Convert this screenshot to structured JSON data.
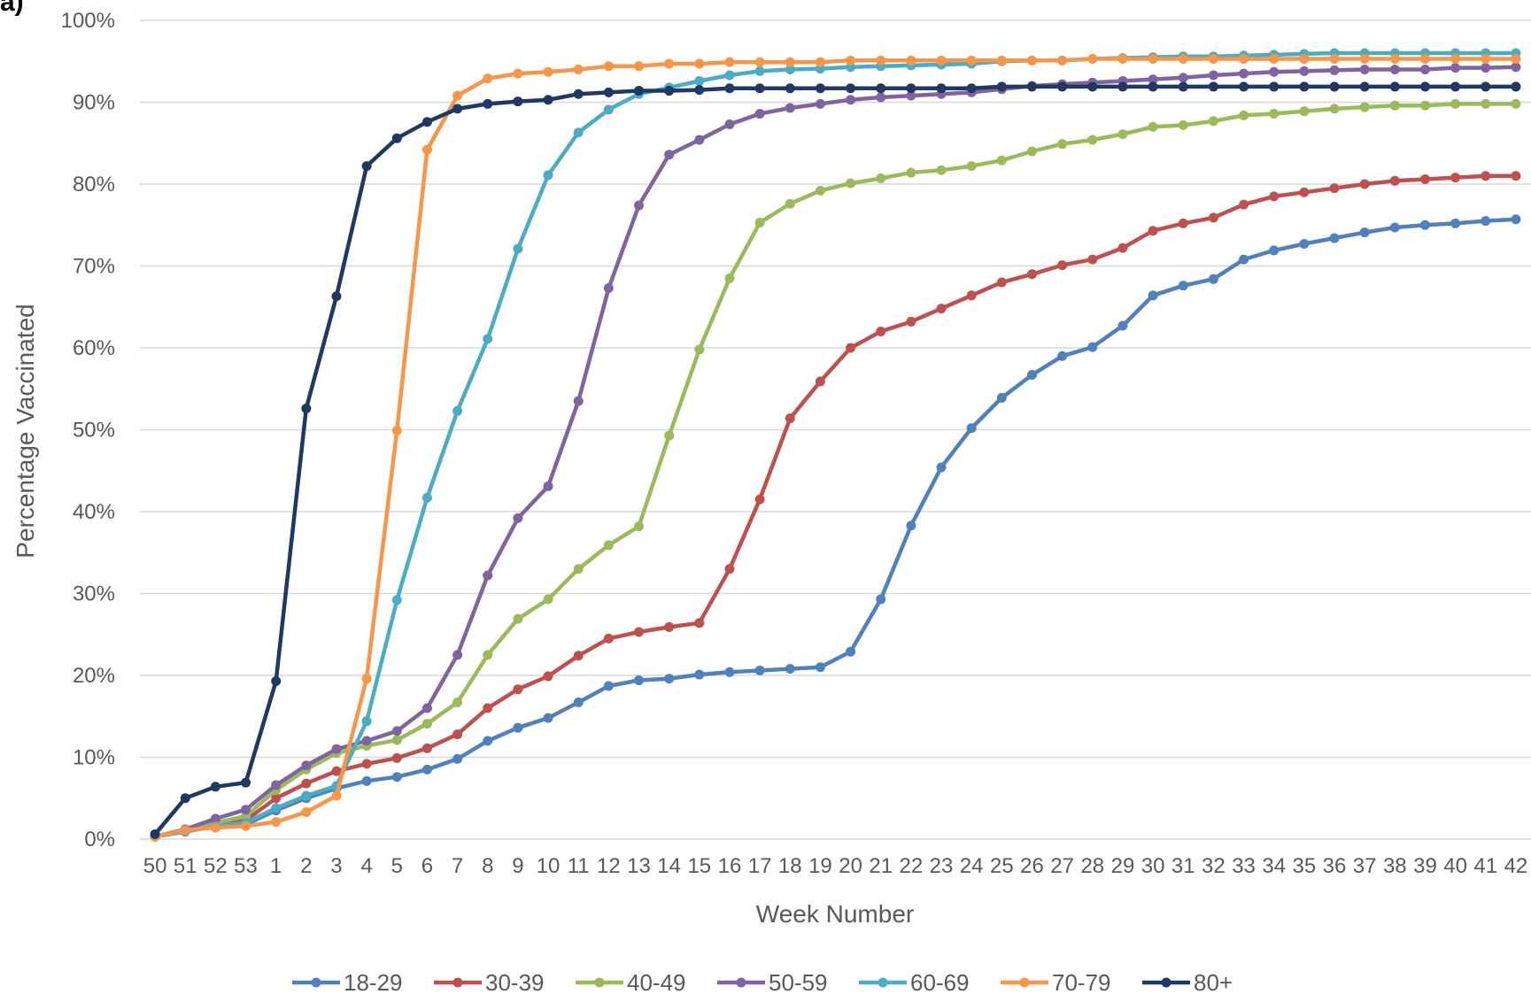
{
  "panel_label": "a)",
  "chart_data": {
    "type": "line",
    "xlabel": "Week Number",
    "ylabel": "Percentage Vaccinated",
    "ylim": [
      0,
      100
    ],
    "yticks": [
      "0%",
      "10%",
      "20%",
      "30%",
      "40%",
      "50%",
      "60%",
      "70%",
      "80%",
      "90%",
      "100%"
    ],
    "grid": "horizontal",
    "legend_position": "bottom",
    "categories": [
      "50",
      "51",
      "52",
      "53",
      "1",
      "2",
      "3",
      "4",
      "5",
      "6",
      "7",
      "8",
      "9",
      "10",
      "11",
      "12",
      "13",
      "14",
      "15",
      "16",
      "17",
      "18",
      "19",
      "20",
      "21",
      "22",
      "23",
      "24",
      "25",
      "26",
      "27",
      "28",
      "29",
      "30",
      "31",
      "32",
      "33",
      "34",
      "35",
      "36",
      "37",
      "38",
      "39",
      "40",
      "41",
      "42"
    ],
    "series": [
      {
        "name": "18-29",
        "color": "#4F81BD",
        "values": [
          0.3,
          1.0,
          1.5,
          1.8,
          3.5,
          5.0,
          6.2,
          7.1,
          7.6,
          8.5,
          9.8,
          12.0,
          13.6,
          14.8,
          16.7,
          18.7,
          19.4,
          19.6,
          20.1,
          20.4,
          20.6,
          20.8,
          21.0,
          22.9,
          29.3,
          38.3,
          45.4,
          50.2,
          53.9,
          56.7,
          59.0,
          60.1,
          62.7,
          66.4,
          67.6,
          68.4,
          70.8,
          71.9,
          72.7,
          73.4,
          74.1,
          74.7,
          75.0,
          75.2,
          75.5,
          75.7
        ]
      },
      {
        "name": "30-39",
        "color": "#C0504D",
        "values": [
          0.3,
          1.1,
          1.8,
          2.3,
          5.0,
          6.8,
          8.3,
          9.2,
          9.9,
          11.1,
          12.8,
          16.0,
          18.3,
          19.9,
          22.4,
          24.5,
          25.3,
          25.9,
          26.4,
          33.0,
          41.5,
          51.4,
          55.9,
          60.0,
          62.0,
          63.2,
          64.8,
          66.4,
          68.0,
          69.0,
          70.1,
          70.8,
          72.2,
          74.3,
          75.2,
          75.9,
          77.5,
          78.5,
          79.0,
          79.5,
          80.0,
          80.4,
          80.6,
          80.8,
          81.0,
          81.0
        ]
      },
      {
        "name": "40-49",
        "color": "#9BBB59",
        "values": [
          0.3,
          1.1,
          2.0,
          2.8,
          6.0,
          8.5,
          10.5,
          11.4,
          12.1,
          14.1,
          16.7,
          22.5,
          26.9,
          29.3,
          33.0,
          35.9,
          38.2,
          49.3,
          59.8,
          68.5,
          75.3,
          77.6,
          79.2,
          80.1,
          80.7,
          81.4,
          81.7,
          82.2,
          82.9,
          84.0,
          84.9,
          85.4,
          86.1,
          87.0,
          87.2,
          87.7,
          88.4,
          88.6,
          88.9,
          89.2,
          89.4,
          89.6,
          89.6,
          89.8,
          89.8,
          89.8
        ]
      },
      {
        "name": "50-59",
        "color": "#8064A2",
        "values": [
          0.3,
          1.2,
          2.5,
          3.6,
          6.6,
          9.0,
          11.0,
          12.0,
          13.2,
          16.0,
          22.5,
          32.2,
          39.2,
          43.1,
          53.5,
          67.3,
          77.4,
          83.6,
          85.4,
          87.3,
          88.6,
          89.3,
          89.8,
          90.3,
          90.6,
          90.8,
          91.0,
          91.2,
          91.6,
          92.0,
          92.2,
          92.4,
          92.6,
          92.8,
          93.0,
          93.3,
          93.5,
          93.7,
          93.8,
          93.9,
          94.0,
          94.0,
          94.0,
          94.2,
          94.2,
          94.3
        ]
      },
      {
        "name": "60-69",
        "color": "#4BACC6",
        "values": [
          0.3,
          0.9,
          1.6,
          2.0,
          3.8,
          5.3,
          6.5,
          14.4,
          29.2,
          41.7,
          52.3,
          61.1,
          72.1,
          81.1,
          86.3,
          89.1,
          91.0,
          91.8,
          92.6,
          93.3,
          93.8,
          94.0,
          94.1,
          94.3,
          94.4,
          94.5,
          94.6,
          94.7,
          95.0,
          95.1,
          95.1,
          95.3,
          95.4,
          95.5,
          95.6,
          95.6,
          95.7,
          95.8,
          95.9,
          96.0,
          96.0,
          96.0,
          96.0,
          96.0,
          96.0,
          96.0
        ]
      },
      {
        "name": "70-79",
        "color": "#F79646",
        "values": [
          0.3,
          1.1,
          1.4,
          1.6,
          2.1,
          3.3,
          5.3,
          19.6,
          49.9,
          84.2,
          90.8,
          92.9,
          93.5,
          93.7,
          94.0,
          94.4,
          94.4,
          94.7,
          94.7,
          94.9,
          94.9,
          94.9,
          94.9,
          95.1,
          95.1,
          95.1,
          95.1,
          95.1,
          95.1,
          95.1,
          95.1,
          95.3,
          95.3,
          95.3,
          95.3,
          95.3,
          95.3,
          95.3,
          95.3,
          95.3,
          95.3,
          95.3,
          95.3,
          95.3,
          95.3,
          95.3
        ]
      },
      {
        "name": "80+",
        "color": "#1F3864",
        "values": [
          0.6,
          5.0,
          6.4,
          6.9,
          19.3,
          52.6,
          66.3,
          82.2,
          85.6,
          87.6,
          89.2,
          89.8,
          90.1,
          90.3,
          91.0,
          91.2,
          91.4,
          91.4,
          91.5,
          91.7,
          91.7,
          91.7,
          91.7,
          91.7,
          91.7,
          91.7,
          91.7,
          91.7,
          91.9,
          91.9,
          91.9,
          91.9,
          91.9,
          91.9,
          91.9,
          91.9,
          91.9,
          91.9,
          91.9,
          91.9,
          91.9,
          91.9,
          91.9,
          91.9,
          91.9,
          91.9
        ]
      }
    ]
  }
}
